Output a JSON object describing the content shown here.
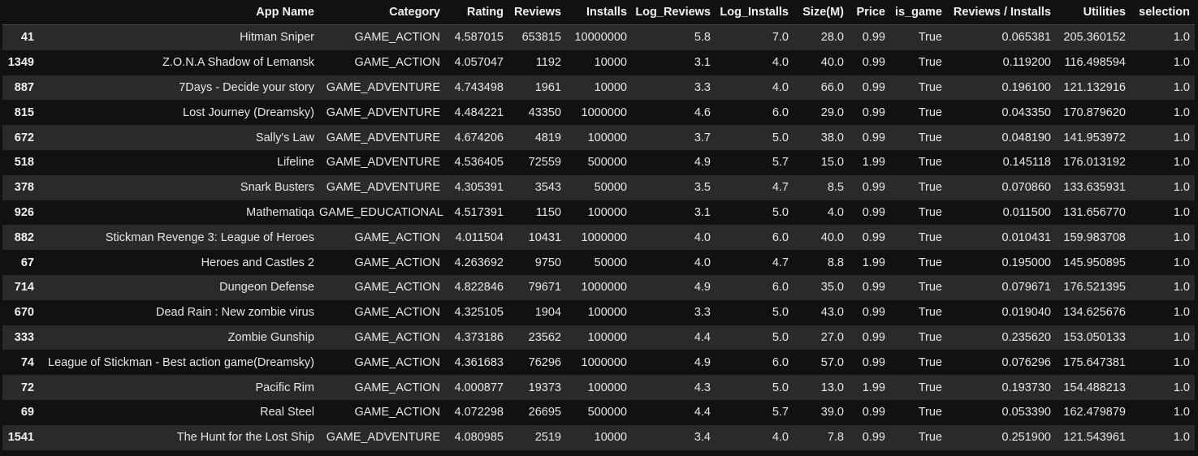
{
  "columns": [
    "",
    "App Name",
    "Category",
    "Rating",
    "Reviews",
    "Installs",
    "Log_Reviews",
    "Log_Installs",
    "Size(M)",
    "Price",
    "is_game",
    "Reviews / Installs",
    "Utilities",
    "selection"
  ],
  "rows": [
    [
      "41",
      "Hitman Sniper",
      "GAME_ACTION",
      "4.587015",
      "653815",
      "10000000",
      "5.8",
      "7.0",
      "28.0",
      "0.99",
      "True",
      "0.065381",
      "205.360152",
      "1.0"
    ],
    [
      "1349",
      "Z.O.N.A Shadow of Lemansk",
      "GAME_ACTION",
      "4.057047",
      "1192",
      "10000",
      "3.1",
      "4.0",
      "40.0",
      "0.99",
      "True",
      "0.119200",
      "116.498594",
      "1.0"
    ],
    [
      "887",
      "7Days - Decide your story",
      "GAME_ADVENTURE",
      "4.743498",
      "1961",
      "10000",
      "3.3",
      "4.0",
      "66.0",
      "0.99",
      "True",
      "0.196100",
      "121.132916",
      "1.0"
    ],
    [
      "815",
      "Lost Journey (Dreamsky)",
      "GAME_ADVENTURE",
      "4.484221",
      "43350",
      "1000000",
      "4.6",
      "6.0",
      "29.0",
      "0.99",
      "True",
      "0.043350",
      "170.879620",
      "1.0"
    ],
    [
      "672",
      "Sally's Law",
      "GAME_ADVENTURE",
      "4.674206",
      "4819",
      "100000",
      "3.7",
      "5.0",
      "38.0",
      "0.99",
      "True",
      "0.048190",
      "141.953972",
      "1.0"
    ],
    [
      "518",
      "Lifeline",
      "GAME_ADVENTURE",
      "4.536405",
      "72559",
      "500000",
      "4.9",
      "5.7",
      "15.0",
      "1.99",
      "True",
      "0.145118",
      "176.013192",
      "1.0"
    ],
    [
      "378",
      "Snark Busters",
      "GAME_ADVENTURE",
      "4.305391",
      "3543",
      "50000",
      "3.5",
      "4.7",
      "8.5",
      "0.99",
      "True",
      "0.070860",
      "133.635931",
      "1.0"
    ],
    [
      "926",
      "Mathematiqa",
      "GAME_EDUCATIONAL",
      "4.517391",
      "1150",
      "100000",
      "3.1",
      "5.0",
      "4.0",
      "0.99",
      "True",
      "0.011500",
      "131.656770",
      "1.0"
    ],
    [
      "882",
      "Stickman Revenge 3: League of Heroes",
      "GAME_ACTION",
      "4.011504",
      "10431",
      "1000000",
      "4.0",
      "6.0",
      "40.0",
      "0.99",
      "True",
      "0.010431",
      "159.983708",
      "1.0"
    ],
    [
      "67",
      "Heroes and Castles 2",
      "GAME_ACTION",
      "4.263692",
      "9750",
      "50000",
      "4.0",
      "4.7",
      "8.8",
      "1.99",
      "True",
      "0.195000",
      "145.950895",
      "1.0"
    ],
    [
      "714",
      "Dungeon Defense",
      "GAME_ACTION",
      "4.822846",
      "79671",
      "1000000",
      "4.9",
      "6.0",
      "35.0",
      "0.99",
      "True",
      "0.079671",
      "176.521395",
      "1.0"
    ],
    [
      "670",
      "Dead Rain : New zombie virus",
      "GAME_ACTION",
      "4.325105",
      "1904",
      "100000",
      "3.3",
      "5.0",
      "43.0",
      "0.99",
      "True",
      "0.019040",
      "134.625676",
      "1.0"
    ],
    [
      "333",
      "Zombie Gunship",
      "GAME_ACTION",
      "4.373186",
      "23562",
      "100000",
      "4.4",
      "5.0",
      "27.0",
      "0.99",
      "True",
      "0.235620",
      "153.050133",
      "1.0"
    ],
    [
      "74",
      "League of Stickman - Best action game(Dreamsky)",
      "GAME_ACTION",
      "4.361683",
      "76296",
      "1000000",
      "4.9",
      "6.0",
      "57.0",
      "0.99",
      "True",
      "0.076296",
      "175.647381",
      "1.0"
    ],
    [
      "72",
      "Pacific Rim",
      "GAME_ACTION",
      "4.000877",
      "19373",
      "100000",
      "4.3",
      "5.0",
      "13.0",
      "1.99",
      "True",
      "0.193730",
      "154.488213",
      "1.0"
    ],
    [
      "69",
      "Real Steel",
      "GAME_ACTION",
      "4.072298",
      "26695",
      "500000",
      "4.4",
      "5.7",
      "39.0",
      "0.99",
      "True",
      "0.053390",
      "162.479879",
      "1.0"
    ],
    [
      "1541",
      "The Hunt for the Lost Ship",
      "GAME_ADVENTURE",
      "4.080985",
      "2519",
      "10000",
      "3.4",
      "4.0",
      "7.8",
      "0.99",
      "True",
      "0.251900",
      "121.543961",
      "1.0"
    ]
  ]
}
